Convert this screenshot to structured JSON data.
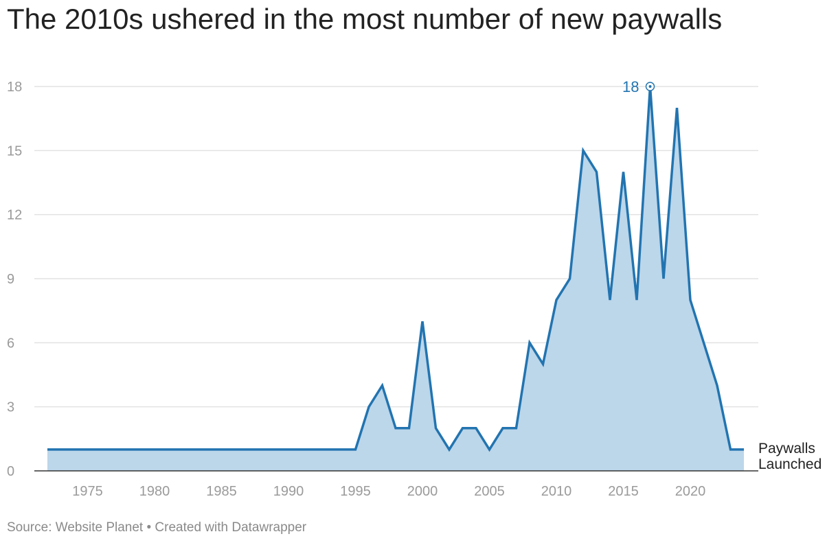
{
  "title": "The 2010s ushered in the most number of new paywalls",
  "footer": {
    "source": "Source: Website Planet",
    "separator": " • ",
    "credit": "Created with Datawrapper"
  },
  "colors": {
    "line": "#2274b0",
    "area": "#bcd6ea",
    "grid": "#e2e2e2",
    "axis": "#333333",
    "tick_text": "#9a9a9a",
    "title_text": "#222222"
  },
  "chart_data": {
    "type": "area",
    "x": [
      1972,
      1973,
      1974,
      1975,
      1976,
      1977,
      1978,
      1979,
      1980,
      1981,
      1982,
      1983,
      1984,
      1985,
      1986,
      1987,
      1988,
      1989,
      1990,
      1991,
      1992,
      1993,
      1994,
      1995,
      1996,
      1997,
      1998,
      1999,
      2000,
      2001,
      2002,
      2003,
      2004,
      2005,
      2006,
      2007,
      2008,
      2009,
      2010,
      2011,
      2012,
      2013,
      2014,
      2015,
      2016,
      2017,
      2018,
      2019,
      2020,
      2021,
      2022,
      2023,
      2024
    ],
    "series": [
      {
        "name": "Paywalls Launched",
        "values": [
          1,
          1,
          1,
          1,
          1,
          1,
          1,
          1,
          1,
          1,
          1,
          1,
          1,
          1,
          1,
          1,
          1,
          1,
          1,
          1,
          1,
          1,
          1,
          1,
          3,
          4,
          2,
          2,
          7,
          2,
          1,
          2,
          2,
          1,
          2,
          2,
          6,
          5,
          8,
          9,
          15,
          14,
          8,
          14,
          8,
          18,
          9,
          17,
          8,
          6,
          4,
          1,
          1
        ]
      }
    ],
    "xlim": [
      1969,
      2025
    ],
    "ylim": [
      0,
      18
    ],
    "x_ticks": [
      "1975",
      "1980",
      "1985",
      "1990",
      "1995",
      "2000",
      "2005",
      "2010",
      "2015",
      "2020"
    ],
    "y_ticks": [
      "0",
      "3",
      "6",
      "9",
      "12",
      "15",
      "18"
    ],
    "annotation": {
      "x": 2017,
      "y": 18,
      "label": "18"
    },
    "grid": true,
    "legend": "inline label at end of line"
  }
}
